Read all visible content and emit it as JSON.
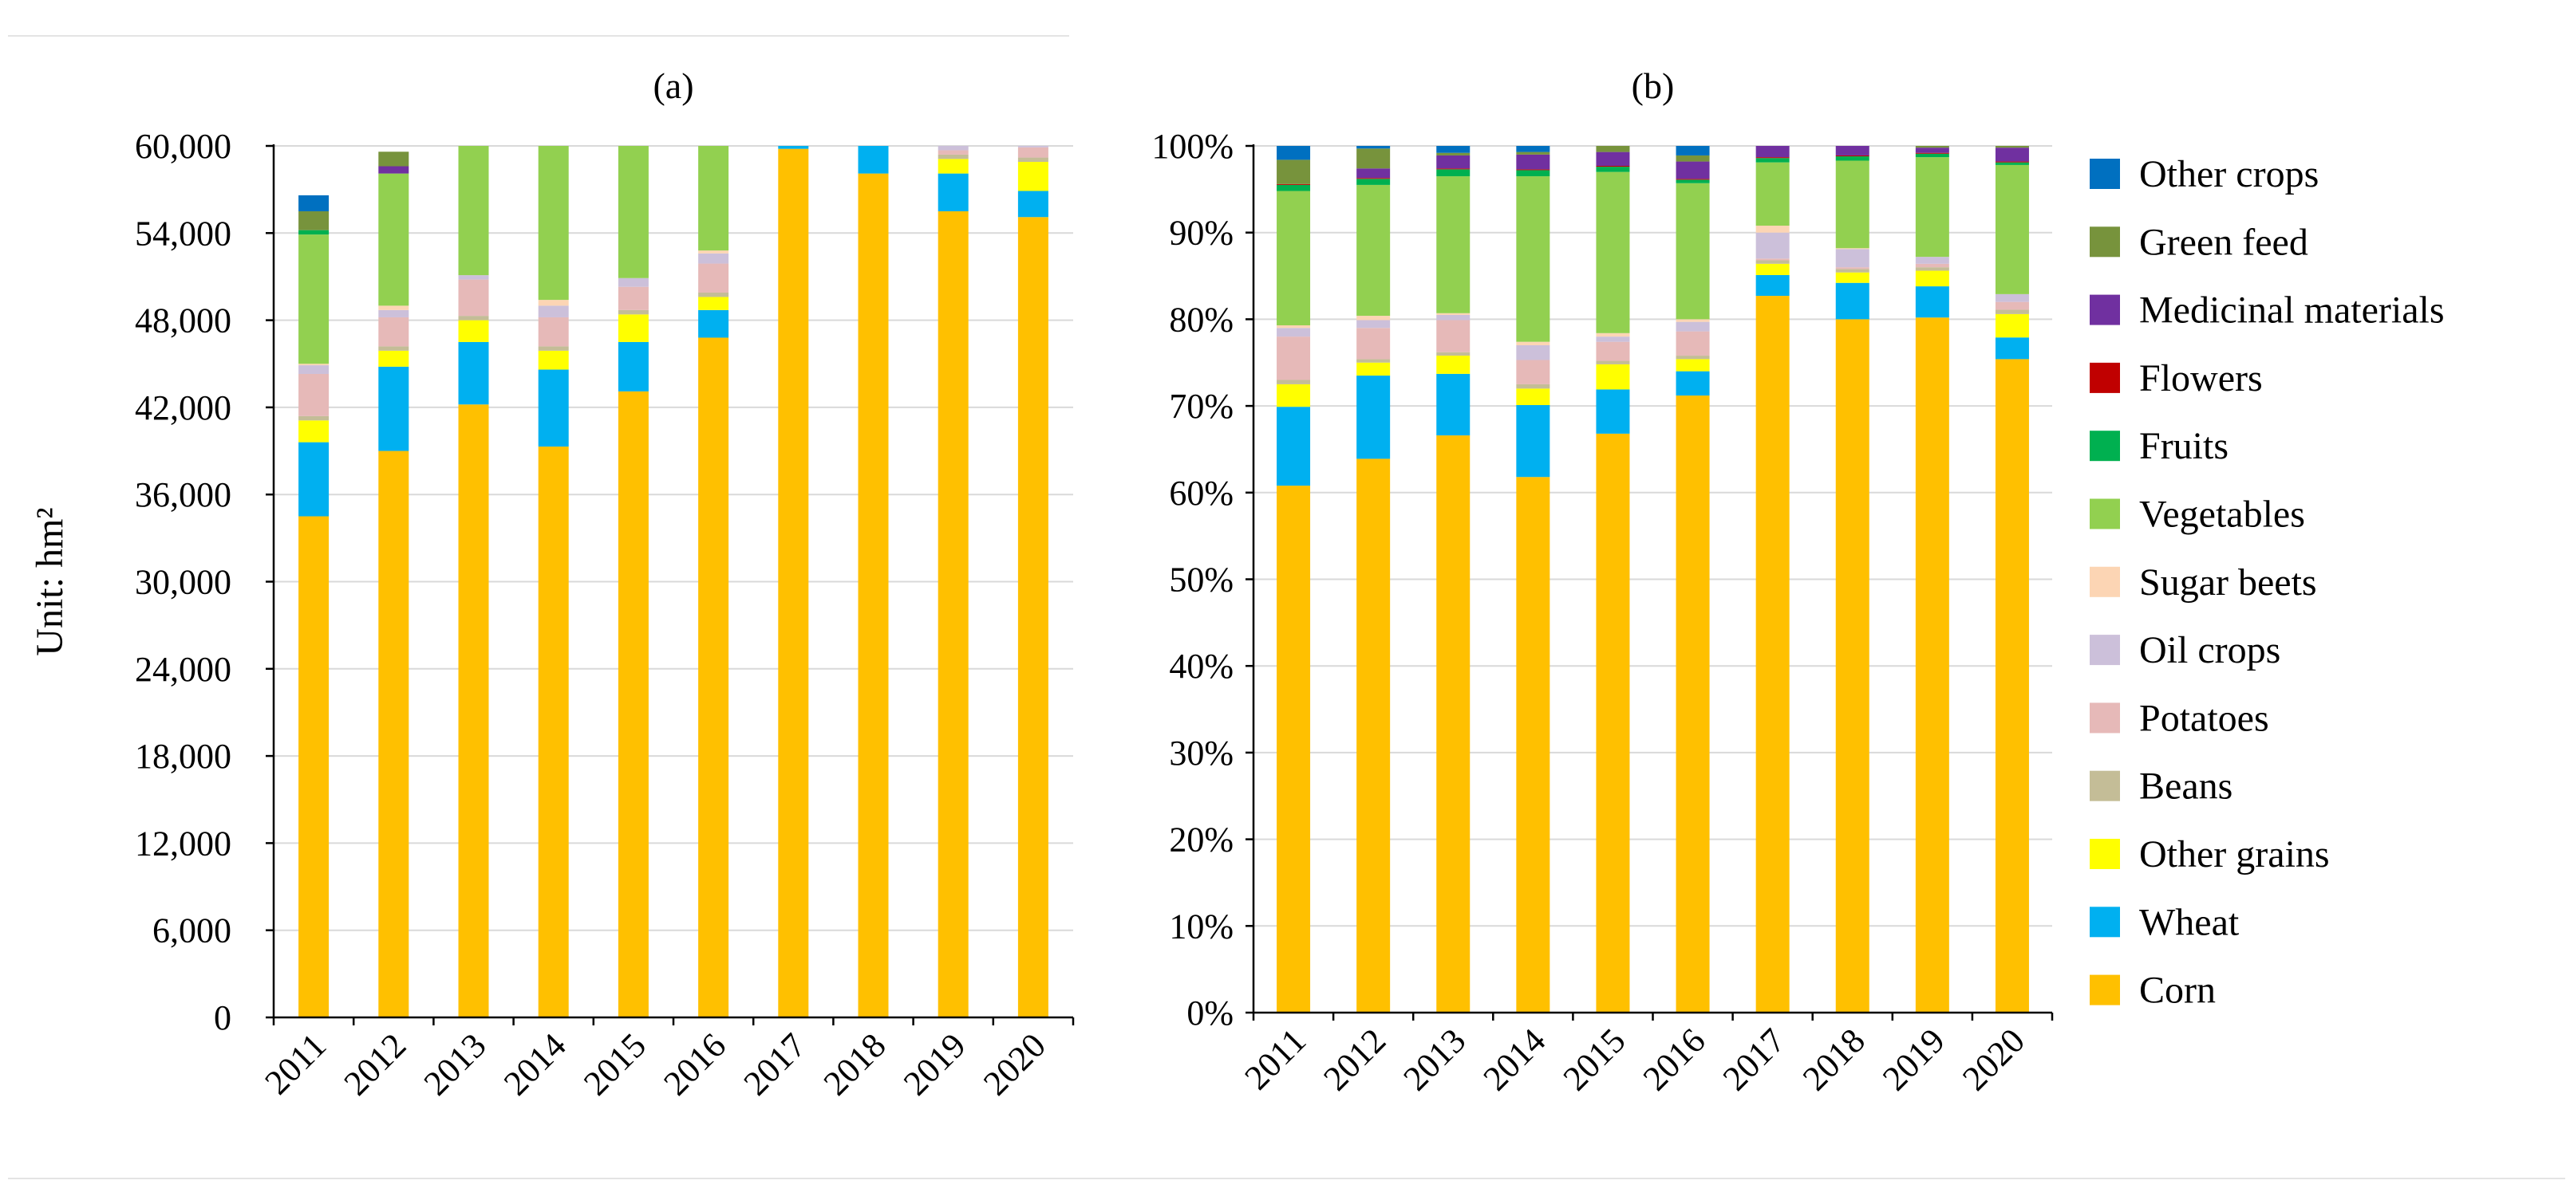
{
  "chart_data": [
    {
      "type": "bar",
      "stacked": true,
      "title": "(a)",
      "ylabel": "Unit: hm²",
      "xlabel": "",
      "ylim": [
        0,
        60000
      ],
      "yticks": [
        0,
        6000,
        12000,
        18000,
        24000,
        30000,
        36000,
        42000,
        48000,
        54000,
        60000
      ],
      "ytick_labels": [
        "0",
        "6,000",
        "12,000",
        "18,000",
        "24,000",
        "30,000",
        "36,000",
        "42,000",
        "48,000",
        "54,000",
        "60,000"
      ],
      "grid": "horizontal",
      "categories": [
        "2011",
        "2012",
        "2013",
        "2014",
        "2015",
        "2016",
        "2017",
        "2018",
        "2019",
        "2020"
      ],
      "series": [
        {
          "name": "Corn",
          "color": "#FFC000",
          "values": [
            34500,
            39000,
            42200,
            39300,
            43100,
            46800,
            59800,
            58100,
            55500,
            55100
          ]
        },
        {
          "name": "Wheat",
          "color": "#00B0F0",
          "values": [
            5100,
            5800,
            4300,
            5300,
            3400,
            1900,
            400,
            3600,
            2600,
            1800
          ]
        },
        {
          "name": "Other grains",
          "color": "#FFFF00",
          "values": [
            1500,
            1100,
            1500,
            1300,
            1900,
            900,
            0,
            0,
            1000,
            2000
          ]
        },
        {
          "name": "Beans",
          "color": "#C4BD97",
          "values": [
            300,
            300,
            300,
            300,
            300,
            300,
            0,
            0,
            300,
            300
          ]
        },
        {
          "name": "Potatoes",
          "color": "#E6B9B8",
          "values": [
            2900,
            2000,
            2500,
            2000,
            1600,
            2000,
            0,
            0,
            300,
            700
          ]
        },
        {
          "name": "Oil crops",
          "color": "#CCC0DA",
          "values": [
            600,
            500,
            300,
            800,
            600,
            700,
            0,
            0,
            300,
            400
          ]
        },
        {
          "name": "Sugar beets",
          "color": "#FCD5B4",
          "values": [
            100,
            300,
            0,
            400,
            0,
            200,
            0,
            0,
            0,
            0
          ]
        },
        {
          "name": "Vegetables",
          "color": "#92D050",
          "values": [
            8900,
            9100,
            9200,
            10900,
            9300,
            7200,
            0,
            0,
            0,
            0
          ]
        },
        {
          "name": "Fruits",
          "color": "#00B050",
          "values": [
            300,
            0,
            0,
            0,
            0,
            0,
            0,
            0,
            0,
            0
          ]
        },
        {
          "name": "Flowers",
          "color": "#C00000",
          "values": [
            0,
            0,
            0,
            0,
            0,
            0,
            0,
            0,
            0,
            0
          ]
        },
        {
          "name": "Medicinal materials",
          "color": "#7030A0",
          "values": [
            0,
            500,
            0,
            0,
            0,
            0,
            0,
            0,
            0,
            0
          ]
        },
        {
          "name": "Green feed",
          "color": "#77933C",
          "values": [
            1300,
            1000,
            0,
            0,
            0,
            0,
            0,
            0,
            0,
            0
          ]
        },
        {
          "name": "Other crops",
          "color": "#0070C0",
          "values": [
            1100,
            0,
            0,
            0,
            0,
            0,
            0,
            0,
            0,
            0
          ]
        }
      ]
    },
    {
      "type": "bar",
      "stacked": true,
      "percent": true,
      "title": "(b)",
      "ylabel": "",
      "xlabel": "",
      "ylim": [
        0,
        100
      ],
      "yticks": [
        0,
        10,
        20,
        30,
        40,
        50,
        60,
        70,
        80,
        90,
        100
      ],
      "ytick_labels": [
        "0%",
        "10%",
        "20%",
        "30%",
        "40%",
        "50%",
        "60%",
        "70%",
        "80%",
        "90%",
        "100%"
      ],
      "grid": "horizontal",
      "legend_position": "right",
      "categories": [
        "2011",
        "2012",
        "2013",
        "2014",
        "2015",
        "2016",
        "2017",
        "2018",
        "2019",
        "2020"
      ],
      "series": [
        {
          "name": "Corn",
          "color": "#FFC000",
          "values": [
            60.8,
            63.9,
            66.6,
            61.8,
            66.8,
            71.2,
            82.7,
            80.0,
            80.2,
            75.4
          ]
        },
        {
          "name": "Wheat",
          "color": "#00B0F0",
          "values": [
            9.1,
            9.6,
            7.1,
            8.3,
            5.1,
            2.8,
            2.4,
            4.2,
            3.6,
            2.5
          ]
        },
        {
          "name": "Other grains",
          "color": "#FFFF00",
          "values": [
            2.6,
            1.5,
            2.1,
            1.9,
            2.9,
            1.4,
            1.3,
            1.2,
            1.8,
            2.7
          ]
        },
        {
          "name": "Beans",
          "color": "#C4BD97",
          "values": [
            0.5,
            0.4,
            0.4,
            0.5,
            0.4,
            0.4,
            0.4,
            0.4,
            0.4,
            0.5
          ]
        },
        {
          "name": "Potatoes",
          "color": "#E6B9B8",
          "values": [
            5.0,
            3.6,
            3.7,
            2.8,
            2.2,
            2.8,
            0.2,
            0.2,
            0.4,
            0.9
          ]
        },
        {
          "name": "Oil crops",
          "color": "#CCC0DA",
          "values": [
            1.0,
            0.9,
            0.6,
            1.7,
            0.6,
            1.1,
            3.0,
            2.1,
            0.8,
            0.9
          ]
        },
        {
          "name": "Sugar beets",
          "color": "#FCD5B4",
          "values": [
            0.3,
            0.5,
            0.2,
            0.4,
            0.4,
            0.3,
            0.8,
            0.1,
            0.0,
            0.0
          ]
        },
        {
          "name": "Vegetables",
          "color": "#92D050",
          "values": [
            15.5,
            15.1,
            15.8,
            19.1,
            18.6,
            15.7,
            7.3,
            10.1,
            11.5,
            14.9
          ]
        },
        {
          "name": "Fruits",
          "color": "#00B050",
          "values": [
            0.7,
            0.7,
            0.8,
            0.7,
            0.6,
            0.4,
            0.5,
            0.5,
            0.4,
            0.3
          ]
        },
        {
          "name": "Flowers",
          "color": "#C00000",
          "values": [
            0.1,
            0.1,
            0.1,
            0.1,
            0.1,
            0.1,
            0.1,
            0.1,
            0.1,
            0.1
          ]
        },
        {
          "name": "Medicinal materials",
          "color": "#7030A0",
          "values": [
            0.0,
            1.1,
            1.5,
            1.7,
            1.6,
            2.0,
            1.3,
            1.1,
            0.6,
            1.6
          ]
        },
        {
          "name": "Green feed",
          "color": "#77933C",
          "values": [
            2.8,
            2.3,
            0.3,
            0.3,
            0.9,
            0.7,
            0.0,
            0.0,
            0.6,
            0.2
          ]
        },
        {
          "name": "Other crops",
          "color": "#0070C0",
          "values": [
            2.0,
            1.0,
            0.8,
            0.7,
            0.8,
            1.8,
            0.0,
            0.0,
            0.0,
            0.0
          ]
        }
      ]
    }
  ],
  "legend": {
    "position": "right",
    "items": [
      "Other crops",
      "Green feed",
      "Medicinal materials",
      "Flowers",
      "Fruits",
      "Vegetables",
      "Sugar beets",
      "Oil crops",
      "Potatoes",
      "Beans",
      "Other grains",
      "Wheat",
      "Corn"
    ]
  }
}
